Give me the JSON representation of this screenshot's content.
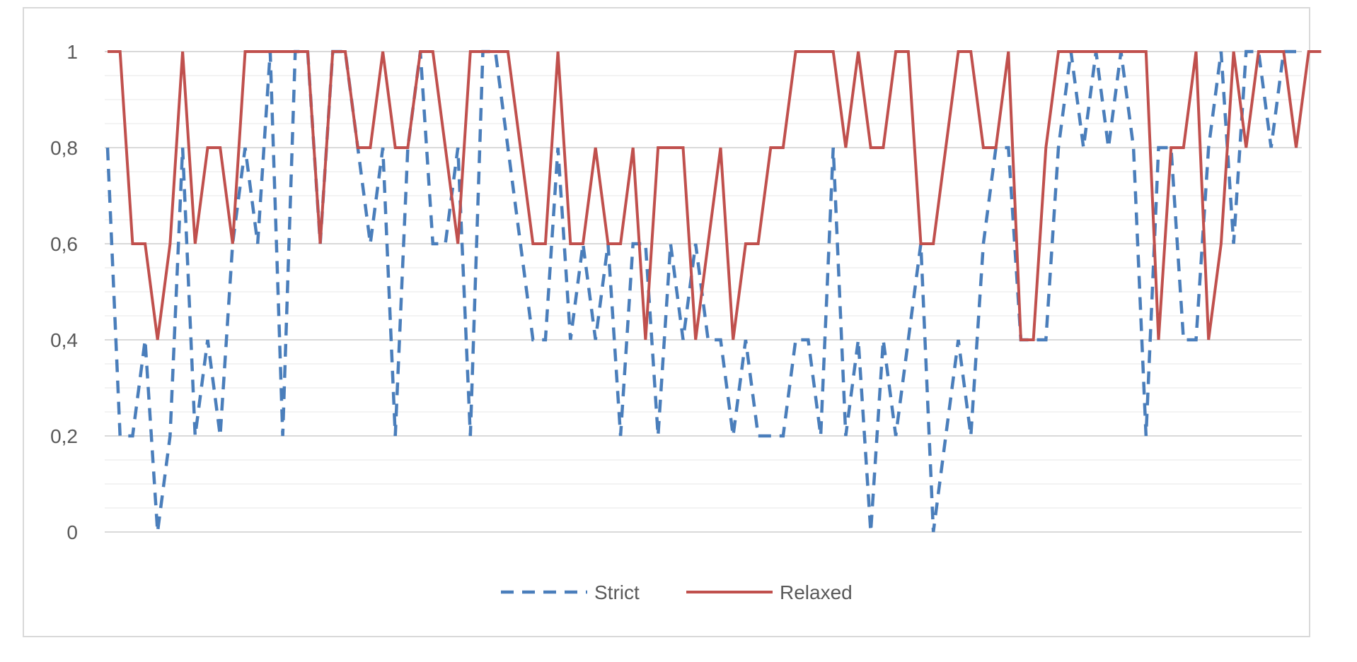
{
  "chart_data": {
    "type": "line",
    "title": "",
    "xlabel": "",
    "ylabel": "",
    "ylim": [
      0,
      1
    ],
    "y_ticks": [
      "0",
      "0,2",
      "0,4",
      "0,6",
      "0,8",
      "1"
    ],
    "y_tick_values": [
      0,
      0.2,
      0.4,
      0.6,
      0.8,
      1
    ],
    "grid": true,
    "minor_grid": true,
    "legend": "bottom-center",
    "series": [
      {
        "name": "Strict",
        "color": "#4a7ebb",
        "style": "dashed",
        "values": [
          0.8,
          0.2,
          0.2,
          0.4,
          0,
          0.2,
          0.8,
          0.2,
          0.4,
          0.2,
          0.6,
          0.8,
          0.6,
          1,
          0.2,
          1,
          1,
          0.6,
          1,
          1,
          0.8,
          0.6,
          0.8,
          0.2,
          0.8,
          1,
          0.6,
          0.6,
          0.8,
          0.2,
          1,
          1,
          0.8,
          0.6,
          0.4,
          0.4,
          0.8,
          0.4,
          0.6,
          0.4,
          0.6,
          0.2,
          0.6,
          0.6,
          0.2,
          0.6,
          0.4,
          0.6,
          0.4,
          0.4,
          0.2,
          0.4,
          0.2,
          0.2,
          0.2,
          0.4,
          0.4,
          0.2,
          0.8,
          0.2,
          0.4,
          0,
          0.4,
          0.2,
          0.4,
          0.6,
          0,
          0.2,
          0.4,
          0.2,
          0.6,
          0.8,
          0.8,
          0.4,
          0.4,
          0.4,
          0.8,
          1,
          0.8,
          1,
          0.8,
          1,
          0.8,
          0.2,
          0.8,
          0.8,
          0.4,
          0.4,
          0.8,
          1,
          0.6,
          1,
          1,
          0.8,
          1,
          1
        ]
      },
      {
        "name": "Relaxed",
        "color": "#c0504d",
        "style": "solid",
        "values": [
          1,
          1,
          0.6,
          0.6,
          0.4,
          0.6,
          1,
          0.6,
          0.8,
          0.8,
          0.6,
          1,
          1,
          1,
          1,
          1,
          1,
          0.6,
          1,
          1,
          0.8,
          0.8,
          1,
          0.8,
          0.8,
          1,
          1,
          0.8,
          0.6,
          1,
          1,
          1,
          1,
          0.8,
          0.6,
          0.6,
          1,
          0.6,
          0.6,
          0.8,
          0.6,
          0.6,
          0.8,
          0.4,
          0.8,
          0.8,
          0.8,
          0.4,
          0.6,
          0.8,
          0.4,
          0.6,
          0.6,
          0.8,
          0.8,
          1,
          1,
          1,
          1,
          0.8,
          1,
          0.8,
          0.8,
          1,
          1,
          0.6,
          0.6,
          0.8,
          1,
          1,
          0.8,
          0.8,
          1,
          0.4,
          0.4,
          0.8,
          1,
          1,
          1,
          1,
          1,
          1,
          1,
          1,
          0.4,
          0.8,
          0.8,
          1,
          0.4,
          0.6,
          1,
          0.8,
          1,
          1,
          1,
          0.8,
          1,
          1
        ]
      }
    ]
  }
}
